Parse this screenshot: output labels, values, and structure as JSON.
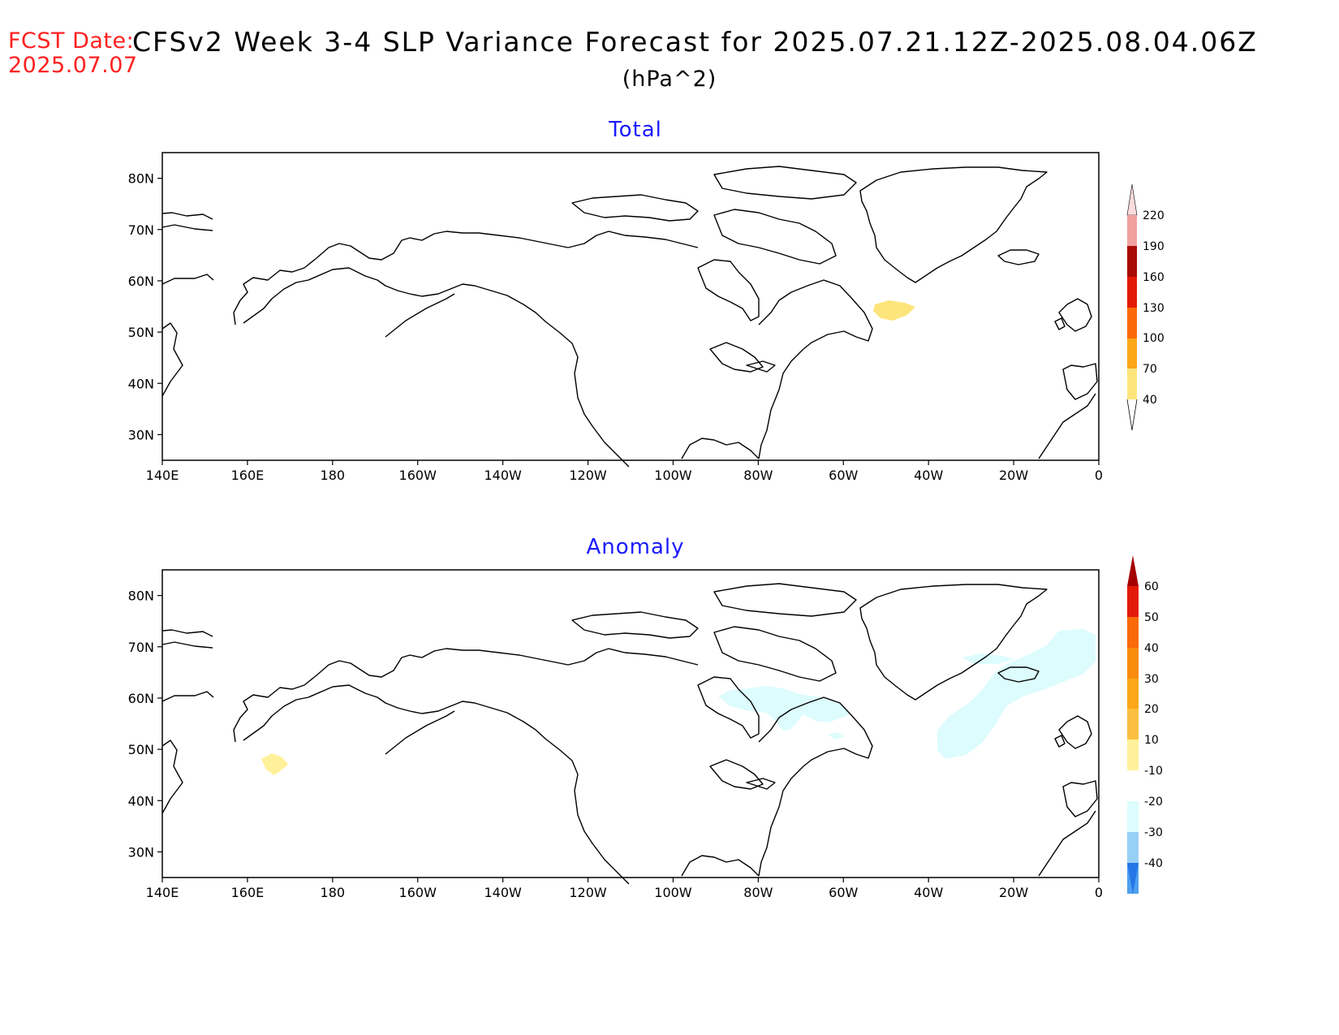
{
  "header": {
    "fcst_label": "FCST Date:",
    "fcst_date": "2025.07.07",
    "title": "CFSv2 Week 3-4 SLP Variance Forecast for 2025.07.21.12Z-2025.08.04.06Z",
    "units": "(hPa^2)"
  },
  "axes": {
    "x_ticks": [
      "140E",
      "160E",
      "180",
      "160W",
      "140W",
      "120W",
      "100W",
      "80W",
      "60W",
      "40W",
      "20W",
      "0"
    ],
    "y_ticks": [
      "80N",
      "70N",
      "60N",
      "50N",
      "40N",
      "30N"
    ],
    "lon_range": [
      140,
      360
    ],
    "lat_range": [
      25,
      85
    ]
  },
  "panels": [
    {
      "title": "Total",
      "colorbar": {
        "labels": [
          "40",
          "70",
          "100",
          "130",
          "160",
          "190",
          "220"
        ],
        "colors": [
          "#ffffff",
          "#fde57c",
          "#fba718",
          "#fa6a09",
          "#e41a08",
          "#a80c04",
          "#f1a0a0",
          "#fbdcdc"
        ]
      },
      "shaded_regions": [
        {
          "level": "40-70",
          "color": "#fde57c",
          "location": "Labrador Sea, ~50W 55N"
        }
      ]
    },
    {
      "title": "Anomaly",
      "colorbar": {
        "labels": [
          "60",
          "50",
          "40",
          "30",
          "20",
          "10",
          "-10",
          "-20",
          "-30",
          "-40"
        ],
        "colors": [
          "#a50000",
          "#e41a08",
          "#fa6a09",
          "#f98c0c",
          "#fba718",
          "#fbc041",
          "#fff19a",
          "#ffffff",
          "#dcfcfd",
          "#97d0f6",
          "#4f9ff0",
          "#2576e6"
        ]
      },
      "shaded_regions": [
        {
          "level": "10-20",
          "color": "#fff19a",
          "location": "NW Pacific, ~165E 48N"
        },
        {
          "level": "-10 to -20",
          "color": "#dcfcfd",
          "location": "Hudson Bay / Quebec"
        },
        {
          "level": "-10 to -20",
          "color": "#dcfcfd",
          "location": "North Atlantic, Iceland to 40W"
        }
      ]
    }
  ]
}
